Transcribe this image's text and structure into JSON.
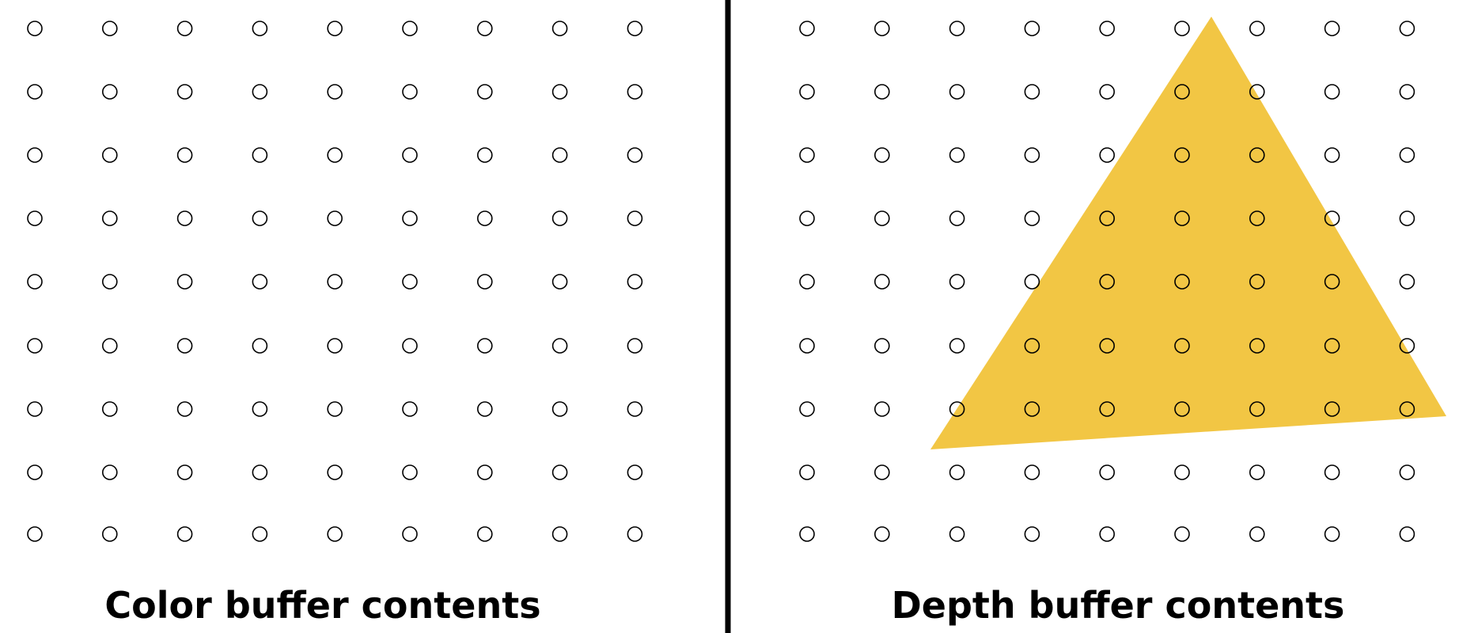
{
  "left_panel": {
    "caption": "Color buffer contents"
  },
  "right_panel": {
    "caption": "Depth buffer contents"
  },
  "sample_grid": {
    "columns": 9,
    "rows": 9
  },
  "colors": {
    "background": "#ffffff",
    "sample_stroke": "#000000",
    "divider": "#000000",
    "triangle_fill": "#f2c644"
  }
}
